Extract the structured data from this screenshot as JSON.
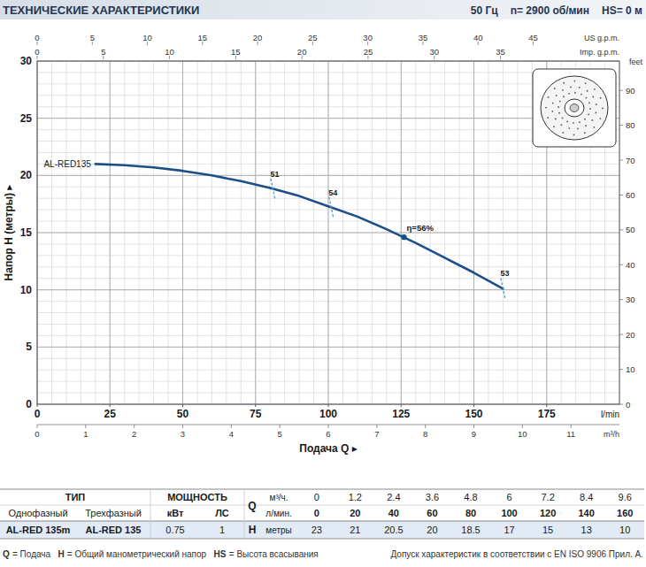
{
  "header": {
    "title": "ТЕХНИЧЕСКИЕ ХАРАКТЕРИСТИКИ",
    "specs": [
      "50 Гц",
      "n= 2900 об/мин",
      "HS= 0 м"
    ]
  },
  "chart_data": {
    "type": "line",
    "x_label": "Подача Q ▸",
    "x_unit": "l/min",
    "y_label": "Напор H (метры) ▸",
    "xlim": [
      0,
      200
    ],
    "xticks": [
      0,
      25,
      50,
      75,
      100,
      125,
      150,
      175
    ],
    "ylim": [
      0,
      30
    ],
    "yticks": [
      0,
      5,
      10,
      15,
      20,
      25,
      30
    ],
    "grid": true,
    "x": [
      20,
      30,
      40,
      50,
      60,
      70,
      80,
      90,
      100,
      110,
      120,
      125,
      130,
      140,
      150,
      160
    ],
    "series": [
      {
        "name": "AL-RED135",
        "color": "#1b4f8a",
        "values": [
          21.0,
          20.9,
          20.7,
          20.4,
          20.0,
          19.5,
          18.9,
          18.2,
          17.3,
          16.4,
          15.3,
          14.7,
          14.1,
          12.8,
          11.5,
          10.1
        ]
      }
    ],
    "efficiency": {
      "x": [
        81,
        101,
        126,
        160
      ],
      "h": [
        18.8,
        17.2,
        14.6,
        10.1
      ],
      "values": [
        51,
        54,
        56,
        53
      ],
      "value_labels": [
        "51",
        "54",
        "η=56%",
        "53"
      ],
      "color": "#4a9fd8"
    },
    "secondary_axes": [
      {
        "label": "US g.p.m.",
        "position": "top",
        "lim": [
          0,
          52.83
        ],
        "ticks": [
          0,
          5,
          10,
          15,
          20,
          25,
          30,
          35,
          40,
          45
        ]
      },
      {
        "label": "Imp. g.p.m.",
        "position": "top",
        "lim": [
          0,
          43.99
        ],
        "ticks": [
          0,
          5,
          10,
          15,
          20,
          25,
          30,
          35
        ]
      },
      {
        "label": "m³/h",
        "position": "bottom",
        "lim": [
          0,
          12
        ],
        "ticks": [
          0,
          1,
          2,
          3,
          4,
          5,
          6,
          7,
          8,
          9,
          10,
          11
        ]
      },
      {
        "label": "feet",
        "position": "right",
        "lim": [
          0,
          98.43
        ],
        "ticks": [
          0,
          10,
          20,
          30,
          40,
          50,
          60,
          70,
          80,
          90
        ]
      }
    ]
  },
  "table": {
    "type_header": "ТИП",
    "power_header": "МОЩНОСТЬ",
    "sub_headers": [
      "Однофазный",
      "Трехфазный",
      "кВт",
      "ЛС"
    ],
    "q_symbol": "Q",
    "q_units": [
      "м³/ч.",
      "л/мин."
    ],
    "q_m3h": [
      0,
      1.2,
      2.4,
      3.6,
      4.8,
      6.0,
      7.2,
      8.4,
      9.6
    ],
    "q_lmin": [
      0,
      20,
      40,
      60,
      80,
      100,
      120,
      140,
      160
    ],
    "h_symbol": "H",
    "h_unit": "метры",
    "rows": [
      [
        "AL-RED 135m",
        "AL-RED 135",
        0.75,
        1
      ]
    ],
    "h_values": [
      23,
      21,
      20.5,
      20,
      18.5,
      17,
      15,
      13,
      10
    ]
  },
  "footer": {
    "notes": [
      {
        "symbol": "Q",
        "text": "= Подача"
      },
      {
        "symbol": "H",
        "text": "= Общий манометрический напор"
      },
      {
        "symbol": "HS",
        "text": "= Высота всасывания"
      }
    ],
    "tolerance": "Допуск характеристик в соответствии с EN ISO 9906 Прил. А."
  }
}
